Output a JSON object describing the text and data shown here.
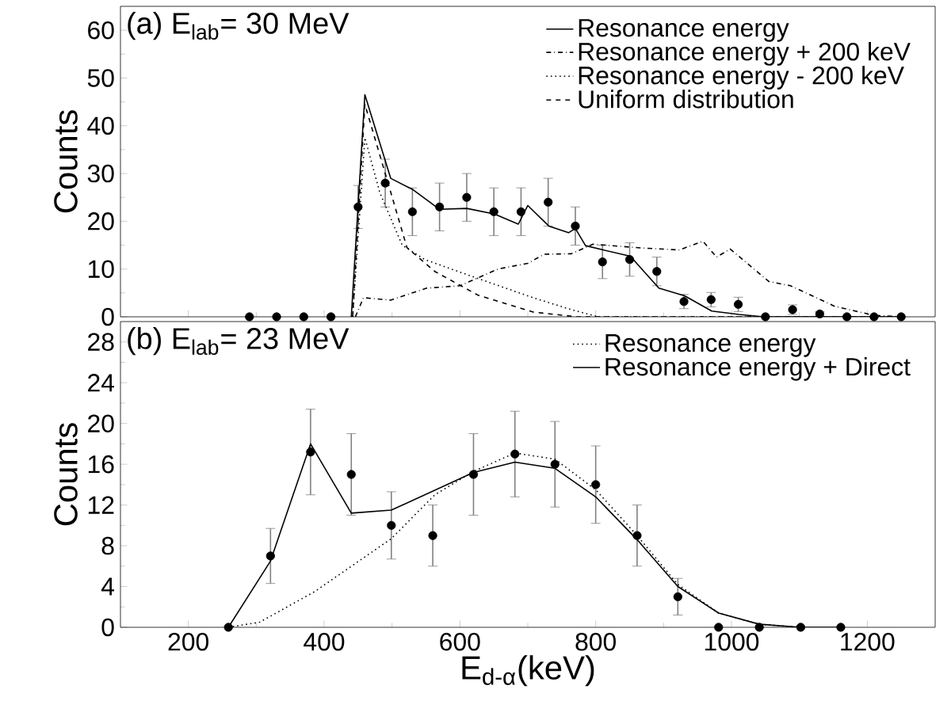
{
  "chart_data": [
    {
      "type": "line",
      "title": "(a) E$_{lab}$= 30 MeV",
      "ylabel": "Counts",
      "xlim": [
        100,
        1300
      ],
      "xticks": [
        200,
        400,
        600,
        800,
        1000,
        1200
      ],
      "ylim": [
        0,
        65
      ],
      "yticks": [
        0,
        10,
        20,
        30,
        40,
        50,
        60
      ],
      "tick_labels": "y",
      "legend": "top right",
      "series": [
        {
          "type": "scatter",
          "color": "#000000",
          "x": [
            290,
            330,
            370,
            410,
            450,
            490,
            530,
            570,
            610,
            650,
            690,
            730,
            770,
            810,
            850,
            890,
            930,
            970,
            1010,
            1050,
            1090,
            1130,
            1170,
            1210,
            1250
          ],
          "values": [
            0,
            0,
            0,
            0,
            23,
            28,
            22,
            23,
            25,
            22,
            22,
            24,
            19,
            11.5,
            12,
            9.5,
            3.2,
            3.6,
            2.6,
            0,
            1.5,
            0.6,
            0,
            0,
            0
          ],
          "errors": [
            null,
            null,
            null,
            null,
            4.5,
            5,
            5,
            5,
            5,
            5,
            5,
            5,
            4,
            3.5,
            3.5,
            3,
            1.5,
            1.5,
            1.5,
            null,
            1,
            0.5,
            null,
            null,
            null
          ]
        },
        {
          "name": "Resonance energy",
          "line_style": "solid",
          "color": "#000000",
          "x": [
            440,
            460,
            498,
            531,
            570,
            610,
            651,
            686,
            700,
            731,
            760,
            770,
            785,
            811,
            851,
            893,
            931,
            971,
            1011,
            1047,
            1250
          ],
          "values": [
            0,
            46.5,
            29,
            26.6,
            22.5,
            22.7,
            21.5,
            19.4,
            23.3,
            19,
            17.6,
            18.5,
            14.9,
            14,
            12.7,
            6,
            4.4,
            1.2,
            0.5,
            0,
            0
          ]
        },
        {
          "name": "Resonance energy + 200 keV",
          "line_style": "dashdot",
          "color": "#000000",
          "x": [
            446,
            458,
            498,
            551,
            600,
            656,
            700,
            724,
            764,
            796,
            869,
            923,
            958,
            978,
            998,
            1055,
            1087,
            1152,
            1210,
            1250
          ],
          "values": [
            0,
            4,
            3.5,
            6,
            6.5,
            10,
            11.2,
            13.1,
            13.2,
            15.2,
            14.4,
            14,
            15.8,
            12.5,
            14.2,
            7.4,
            6.5,
            2.2,
            0.3,
            0
          ]
        },
        {
          "name": "Resonance energy - 200 keV",
          "line_style": "dotted",
          "color": "#000000",
          "x": [
            442,
            460,
            482,
            515,
            548,
            627,
            708,
            764,
            804,
            1250
          ],
          "values": [
            0,
            37.5,
            26,
            15,
            12,
            8,
            4,
            1.5,
            0,
            0
          ]
        },
        {
          "name": "Uniform distribution",
          "line_style": "dashed",
          "color": "#000000",
          "x": [
            442,
            460,
            490,
            522,
            563,
            627,
            708,
            772,
            1250
          ],
          "values": [
            0,
            44.5,
            30,
            14.5,
            9.5,
            4.5,
            1,
            0,
            0
          ]
        }
      ]
    },
    {
      "type": "line",
      "title": "(b) E$_{lab}$= 23 MeV",
      "ylabel": "Counts",
      "xlabel": "E$_{d-α}$(keV)",
      "xlim": [
        100,
        1300
      ],
      "xticks": [
        200,
        400,
        600,
        800,
        1000,
        1200
      ],
      "ylim": [
        0,
        30
      ],
      "yticks": [
        0,
        4,
        8,
        12,
        16,
        20,
        24,
        28
      ],
      "legend": "top right",
      "series": [
        {
          "type": "scatter",
          "color": "#000000",
          "x": [
            259,
            321,
            380,
            440,
            499,
            560,
            620,
            681,
            740,
            800,
            861,
            921,
            981,
            1041,
            1102,
            1161
          ],
          "values": [
            0,
            7,
            17.2,
            15,
            10,
            9,
            15,
            17,
            16,
            14,
            9,
            3,
            0,
            0,
            0,
            0
          ],
          "errors": [
            null,
            2.7,
            4.2,
            4,
            3.3,
            3,
            4,
            4.2,
            4.2,
            3.8,
            3,
            1.8,
            null,
            null,
            null,
            null
          ]
        },
        {
          "name": "Resonance energy",
          "line_style": "dotted",
          "color": "#000000",
          "x": [
            259,
            305,
            386,
            499,
            563,
            620,
            681,
            740,
            800,
            861,
            921,
            981,
            1041,
            1102
          ],
          "values": [
            0,
            0.5,
            3.5,
            8.7,
            13,
            15.3,
            17.1,
            16.5,
            13.5,
            9,
            4.2,
            1.4,
            0.3,
            0
          ]
        },
        {
          "name": "Resonance energy + Direct",
          "line_style": "solid",
          "color": "#000000",
          "x": [
            259,
            321,
            380,
            440,
            499,
            620,
            681,
            740,
            800,
            861,
            921,
            981,
            1041,
            1102,
            1161
          ],
          "values": [
            0,
            6.5,
            18,
            11.2,
            11.5,
            15.2,
            16.2,
            15.6,
            12.8,
            8.6,
            4,
            1.4,
            0.3,
            0,
            0
          ]
        }
      ]
    }
  ]
}
